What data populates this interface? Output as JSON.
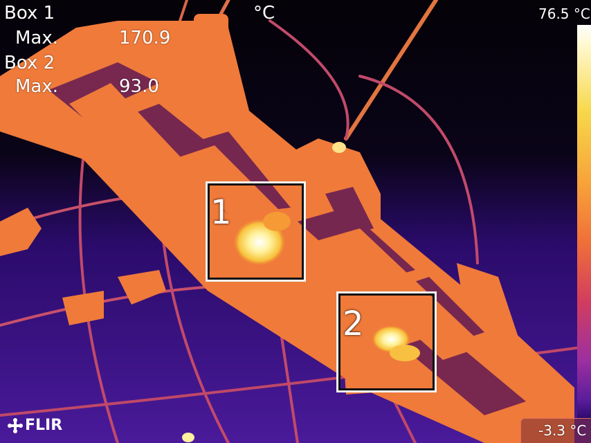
{
  "unit_top": "°C",
  "scale": {
    "max": "76.5 °C",
    "min": "-3.3 °C"
  },
  "measurements": [
    {
      "label": "Box 1",
      "sub": "Max.",
      "value": "170.9"
    },
    {
      "label": "Box 2",
      "sub": "Max.",
      "value": "93.0"
    }
  ],
  "boxes": [
    {
      "number": "1"
    },
    {
      "number": "2"
    }
  ],
  "brand": "FLIR"
}
